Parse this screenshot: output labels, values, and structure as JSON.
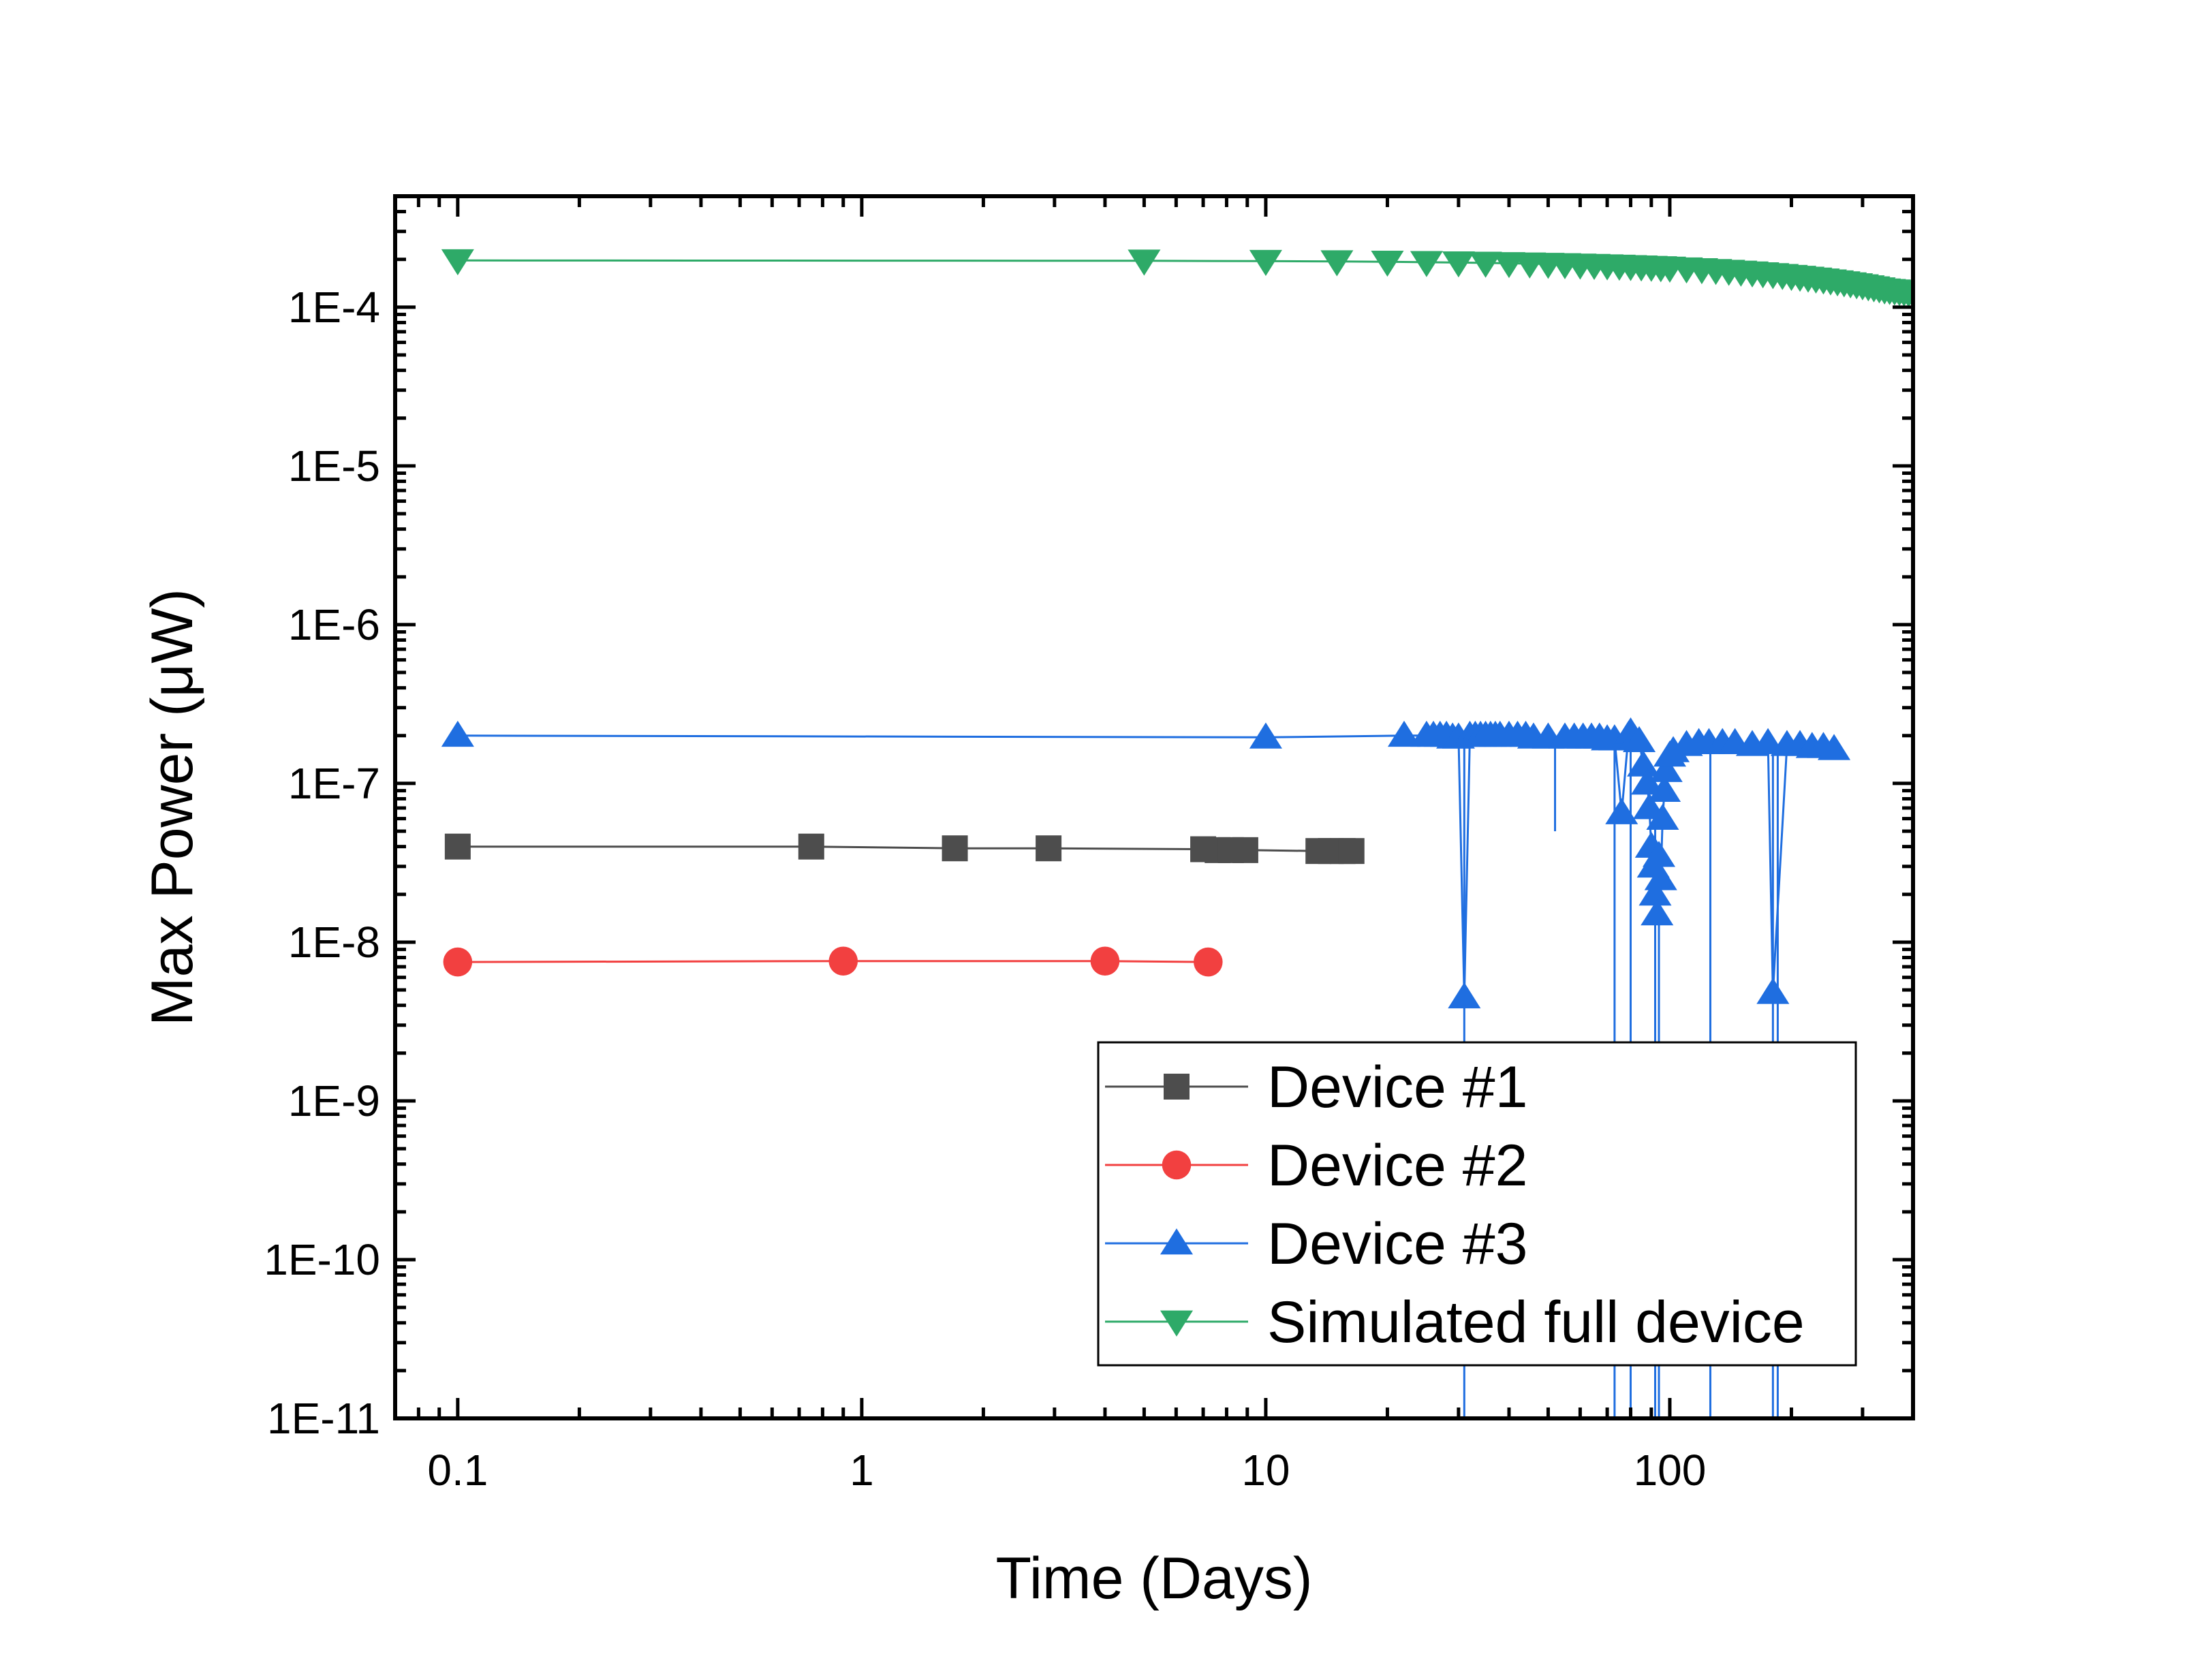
{
  "chart_data": {
    "type": "scatter",
    "title": "",
    "xlabel": "Time (Days)",
    "ylabel": "Max Power (μW)",
    "xscale": "log",
    "yscale": "log",
    "xlim": [
      0.07,
      400
    ],
    "ylim": [
      1e-11,
      0.0005
    ],
    "x_ticks": [
      {
        "value": 0.1,
        "label": "0.1"
      },
      {
        "value": 1,
        "label": "1"
      },
      {
        "value": 10,
        "label": "10"
      },
      {
        "value": 100,
        "label": "100"
      }
    ],
    "y_ticks": [
      {
        "value": 1e-11,
        "label": "1E-11"
      },
      {
        "value": 1e-10,
        "label": "1E-10"
      },
      {
        "value": 1e-09,
        "label": "1E-9"
      },
      {
        "value": 1e-08,
        "label": "1E-8"
      },
      {
        "value": 1e-07,
        "label": "1E-7"
      },
      {
        "value": 1e-06,
        "label": "1E-6"
      },
      {
        "value": 1e-05,
        "label": "1E-5"
      },
      {
        "value": 0.0001,
        "label": "1E-4"
      }
    ],
    "grid": false,
    "legend_position": "bottom-right",
    "series": [
      {
        "name": "Device #1",
        "color": "#4d4d4d",
        "marker": "square",
        "x": [
          0.1,
          0.75,
          1.7,
          2.9,
          7.0,
          7.6,
          8.2,
          8.9,
          13.5,
          14.5,
          15.5,
          16.3
        ],
        "y": [
          4e-08,
          4e-08,
          3.9e-08,
          3.9e-08,
          3.85e-08,
          3.8e-08,
          3.8e-08,
          3.8e-08,
          3.75e-08,
          3.75e-08,
          3.75e-08,
          3.75e-08
        ]
      },
      {
        "name": "Device #2",
        "color": "#f24040",
        "marker": "circle",
        "x": [
          0.1,
          0.9,
          4.0,
          7.2
        ],
        "y": [
          7.5e-09,
          7.6e-09,
          7.6e-09,
          7.5e-09
        ]
      },
      {
        "name": "Device #3",
        "color": "#1f6ee0",
        "marker": "triangle-up",
        "x": [
          0.1,
          10,
          22,
          25,
          26,
          27,
          28,
          29,
          30,
          31,
          32,
          33,
          34,
          35,
          36,
          37,
          38,
          40,
          42,
          44,
          46,
          50,
          55,
          58,
          61,
          64,
          67,
          70,
          73,
          76,
          79,
          80,
          82,
          84,
          86,
          88,
          89,
          90,
          91,
          92,
          93,
          94,
          95,
          96,
          97,
          98,
          100,
          102,
          110,
          118,
          125,
          135,
          145,
          160,
          175,
          180,
          195,
          210,
          225,
          240,
          255
        ],
        "y": [
          2e-07,
          1.95e-07,
          2e-07,
          2e-07,
          2e-07,
          2e-07,
          2e-07,
          1.95e-07,
          1.95e-07,
          4.5e-09,
          2e-07,
          2e-07,
          2e-07,
          2e-07,
          2e-07,
          2e-07,
          2e-07,
          2e-07,
          2e-07,
          2e-07,
          1.95e-07,
          1.95e-07,
          1.95e-07,
          1.95e-07,
          1.95e-07,
          1.95e-07,
          1.95e-07,
          1.9e-07,
          1.9e-07,
          6.5e-08,
          2e-07,
          2.1e-07,
          1.9e-07,
          1.85e-07,
          1.3e-07,
          1e-07,
          7e-08,
          4e-08,
          3e-08,
          2e-08,
          1.5e-08,
          3.5e-08,
          2.5e-08,
          6e-08,
          9e-08,
          1.2e-07,
          1.5e-07,
          1.6e-07,
          1.75e-07,
          1.8e-07,
          1.8e-07,
          1.8e-07,
          1.8e-07,
          1.75e-07,
          1.8e-07,
          4.8e-09,
          1.75e-07,
          1.75e-07,
          1.7e-07,
          1.7e-07,
          1.65e-07
        ]
      },
      {
        "name": "Simulated full device",
        "color": "#2eaa68",
        "marker": "triangle-down",
        "x": [
          0.1,
          5,
          10,
          15,
          20,
          25,
          30,
          35,
          40,
          45,
          50,
          55,
          60,
          65,
          70,
          75,
          80,
          85,
          90,
          95,
          100,
          110,
          120,
          130,
          140,
          150,
          160,
          170,
          180,
          190,
          200,
          210,
          220,
          230,
          240,
          250,
          260,
          270,
          280,
          290,
          300,
          310,
          320,
          330,
          340,
          350,
          360,
          370,
          380,
          390,
          400
        ],
        "y": [
          0.000197,
          0.000196,
          0.000195,
          0.000194,
          0.000193,
          0.000192,
          0.000191,
          0.00019,
          0.000189,
          0.000188,
          0.000187,
          0.000186,
          0.000185,
          0.000184,
          0.000183,
          0.000182,
          0.000181,
          0.00018,
          0.000179,
          0.000178,
          0.000177,
          0.000175,
          0.000173,
          0.000171,
          0.000169,
          0.000167,
          0.000165,
          0.000163,
          0.000161,
          0.000159,
          0.000157,
          0.000155,
          0.000153,
          0.000151,
          0.000149,
          0.000147,
          0.000145,
          0.000143,
          0.000141,
          0.000139,
          0.000137,
          0.000135,
          0.000133,
          0.000131,
          0.000129,
          0.000128,
          0.000127,
          0.000126,
          0.000125,
          0.000124,
          0.000123
        ]
      }
    ],
    "drop_lines": {
      "series": "Device #3",
      "color": "#1f6ee0",
      "x": [
        31,
        52,
        73,
        80,
        92,
        94,
        126,
        180,
        185
      ],
      "y_from": [
        2e-07,
        1.95e-07,
        1.9e-07,
        2e-07,
        6e-08,
        3e-08,
        1.8e-07,
        1.8e-07,
        1.75e-07
      ],
      "y_to": [
        1e-11,
        5e-08,
        1e-11,
        1e-11,
        1e-11,
        1e-11,
        1e-11,
        1e-11,
        1e-11
      ]
    }
  }
}
